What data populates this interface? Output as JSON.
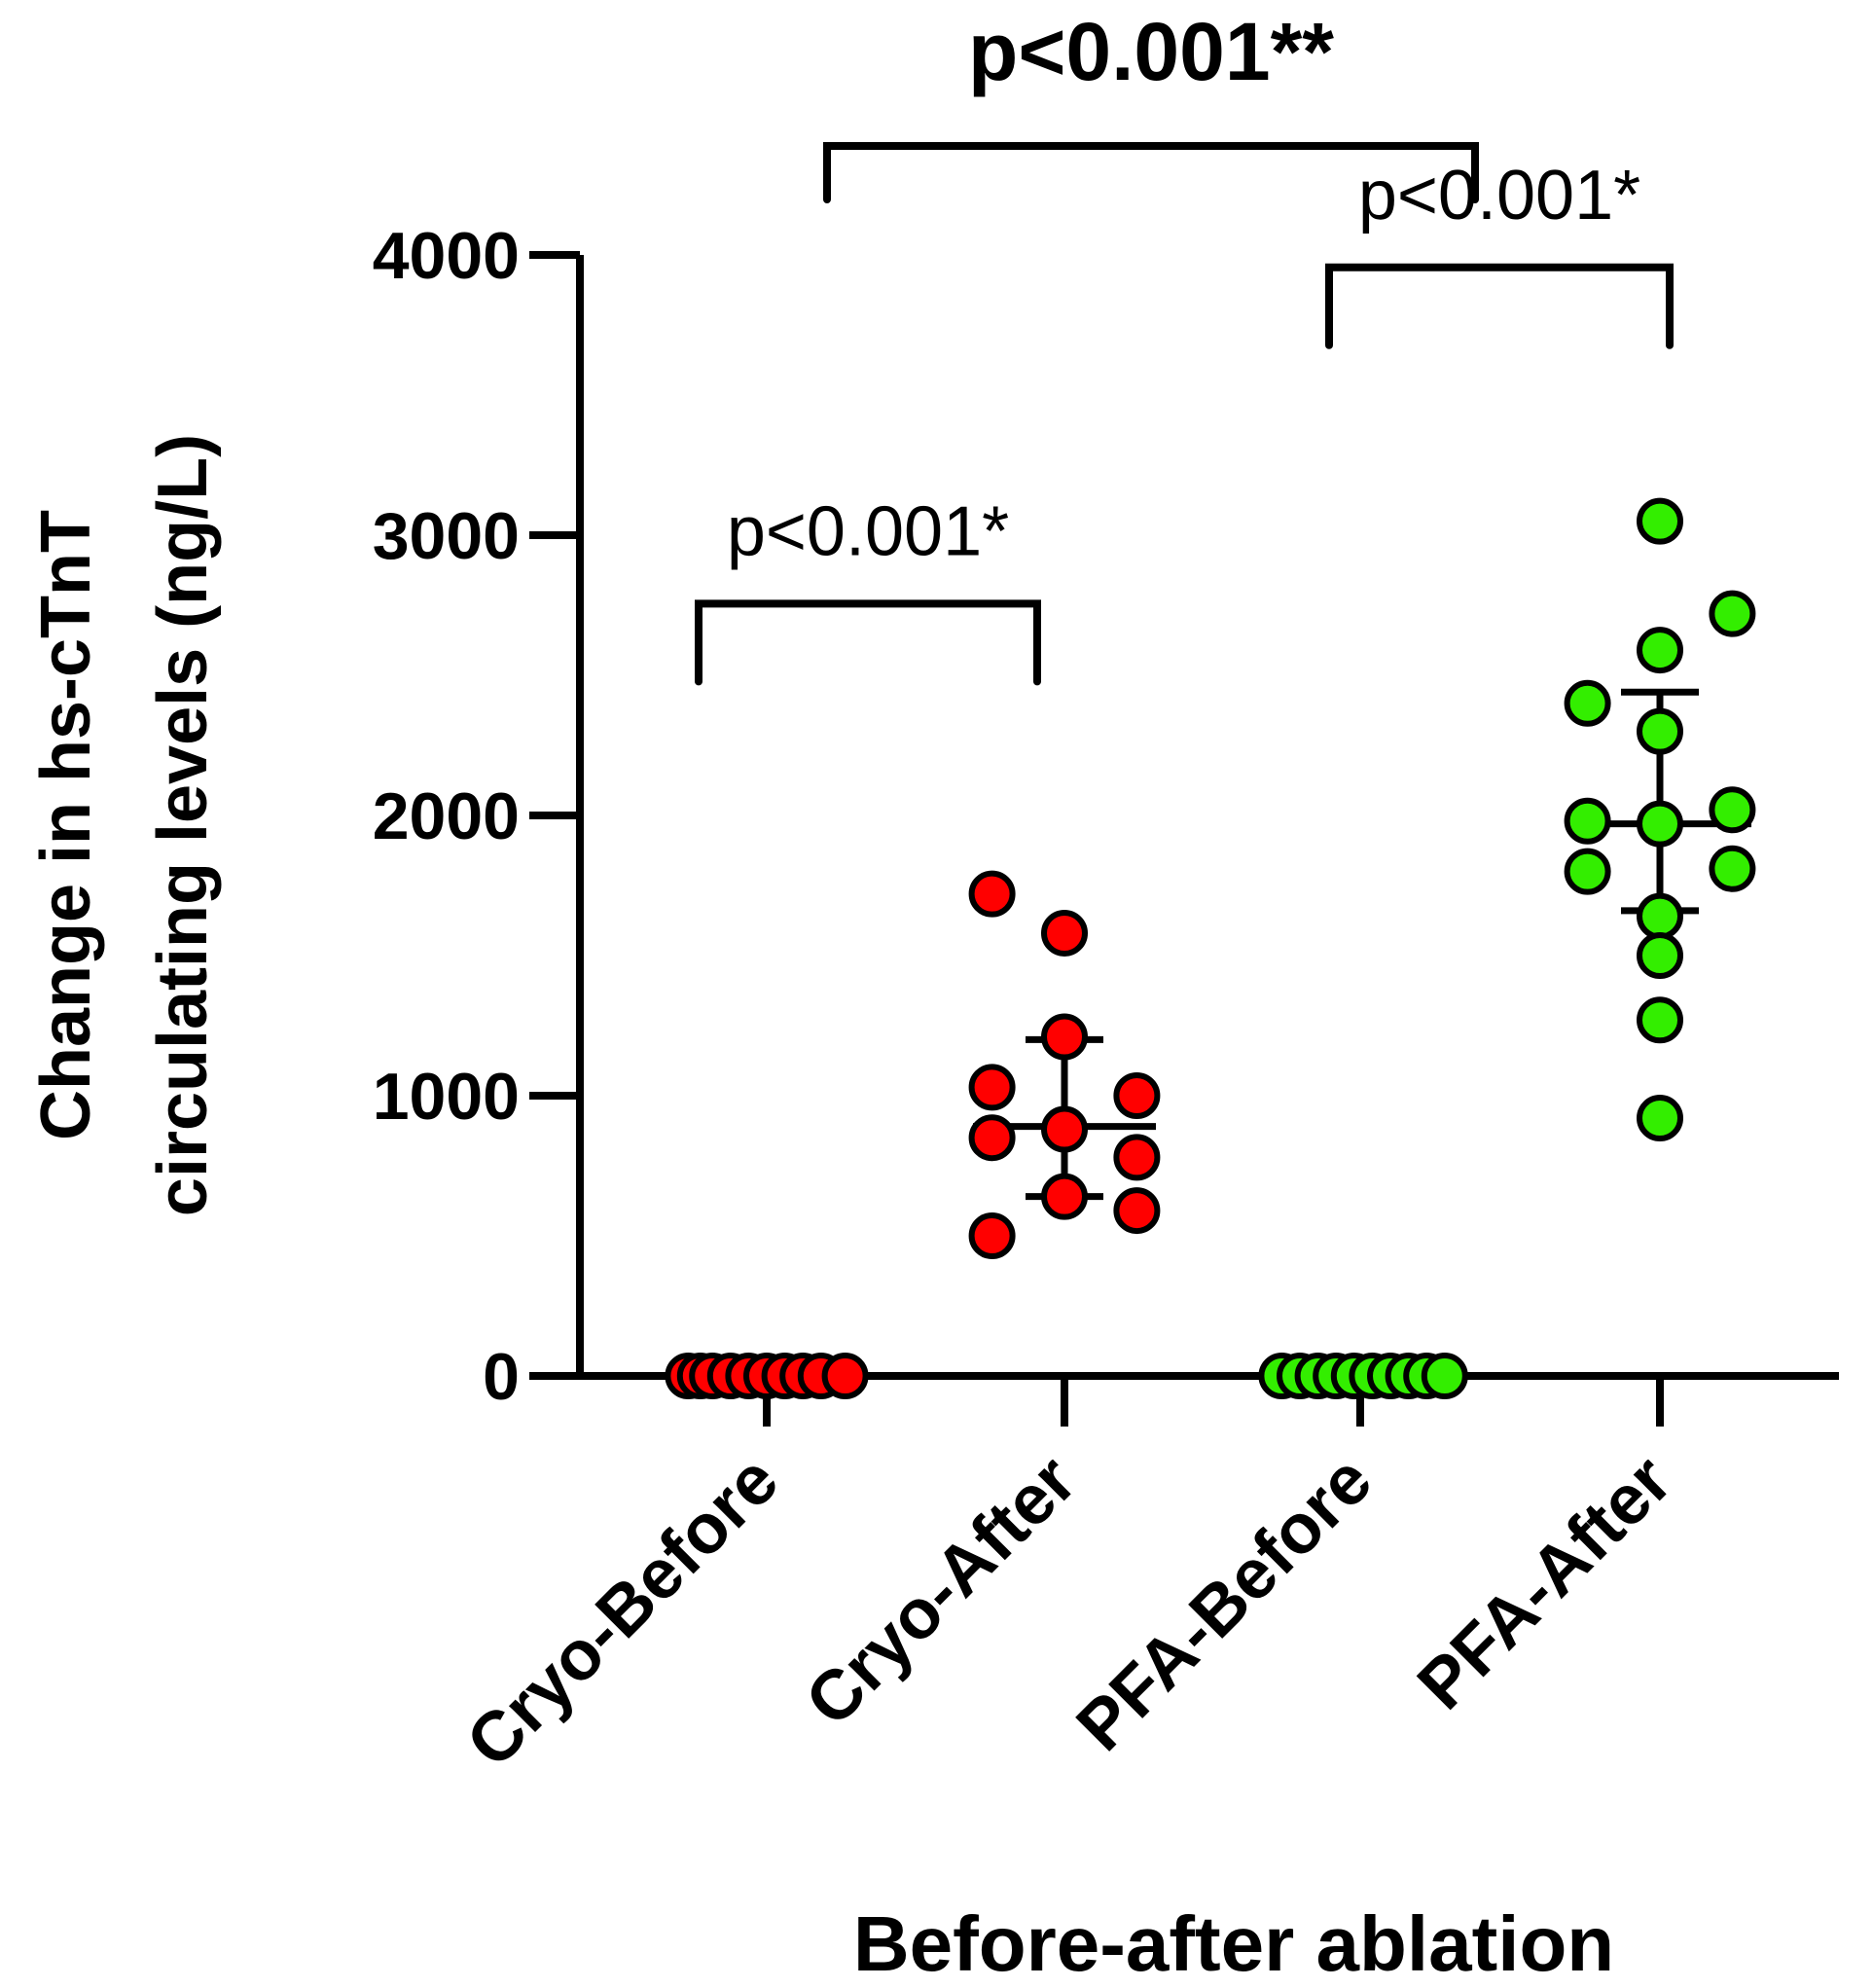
{
  "chart_data": {
    "type": "scatter",
    "title": "",
    "xlabel": "Before-after ablation",
    "ylabel_lines": [
      "Change in hs-cTnT",
      "circulating levels (ng/L)"
    ],
    "ylim": [
      0,
      4000
    ],
    "yticks": [
      0,
      1000,
      2000,
      3000,
      4000
    ],
    "grid": false,
    "categories": [
      "Cryo-Before",
      "Cryo-After",
      "PFA-Before",
      "PFA-After"
    ],
    "series": [
      {
        "name": "Cryo-Before",
        "color": "#ff0000",
        "points": [
          [
            -0.26,
            0
          ],
          [
            -0.22,
            0
          ],
          [
            -0.18,
            0
          ],
          [
            -0.12,
            0
          ],
          [
            -0.06,
            0
          ],
          [
            0.0,
            0
          ],
          [
            0.06,
            0
          ],
          [
            0.12,
            0
          ],
          [
            0.18,
            0
          ],
          [
            0.26,
            0
          ]
        ]
      },
      {
        "name": "Cryo-After",
        "color": "#ff0000",
        "points": [
          [
            -0.24,
            1720
          ],
          [
            0.0,
            1580
          ],
          [
            0.0,
            1210
          ],
          [
            -0.24,
            1030
          ],
          [
            0.24,
            1000
          ],
          [
            0.0,
            880
          ],
          [
            -0.24,
            850
          ],
          [
            0.24,
            780
          ],
          [
            0.0,
            640
          ],
          [
            0.24,
            590
          ],
          [
            -0.24,
            500
          ]
        ],
        "mean": 890,
        "error_low": 640,
        "error_high": 1200
      },
      {
        "name": "PFA-Before",
        "color": "#33ee00",
        "points": [
          [
            -0.26,
            0
          ],
          [
            -0.2,
            0
          ],
          [
            -0.14,
            0
          ],
          [
            -0.08,
            0
          ],
          [
            -0.02,
            0
          ],
          [
            0.04,
            0
          ],
          [
            0.1,
            0
          ],
          [
            0.16,
            0
          ],
          [
            0.22,
            0
          ],
          [
            0.28,
            0
          ]
        ]
      },
      {
        "name": "PFA-After",
        "color": "#33ee00",
        "points": [
          [
            0.0,
            3050
          ],
          [
            0.24,
            2720
          ],
          [
            0.0,
            2590
          ],
          [
            -0.24,
            2400
          ],
          [
            0.0,
            2300
          ],
          [
            0.24,
            2020
          ],
          [
            -0.24,
            1980
          ],
          [
            0.0,
            1970
          ],
          [
            -0.24,
            1800
          ],
          [
            0.24,
            1810
          ],
          [
            0.0,
            1640
          ],
          [
            0.0,
            1500
          ],
          [
            0.0,
            1270
          ],
          [
            0.0,
            920
          ]
        ],
        "mean": 1970,
        "error_low": 1660,
        "error_high": 2440
      }
    ],
    "annotations": [
      {
        "label": "p<0.001**",
        "from": 0,
        "to": 3,
        "level": "top",
        "bold": true
      },
      {
        "label": "p<0.001*",
        "from": 2,
        "to": 3,
        "level": 3400,
        "bold": false
      },
      {
        "label": "p<0.001*",
        "from": 0,
        "to": 1,
        "level": 2200,
        "bold": false
      }
    ]
  }
}
